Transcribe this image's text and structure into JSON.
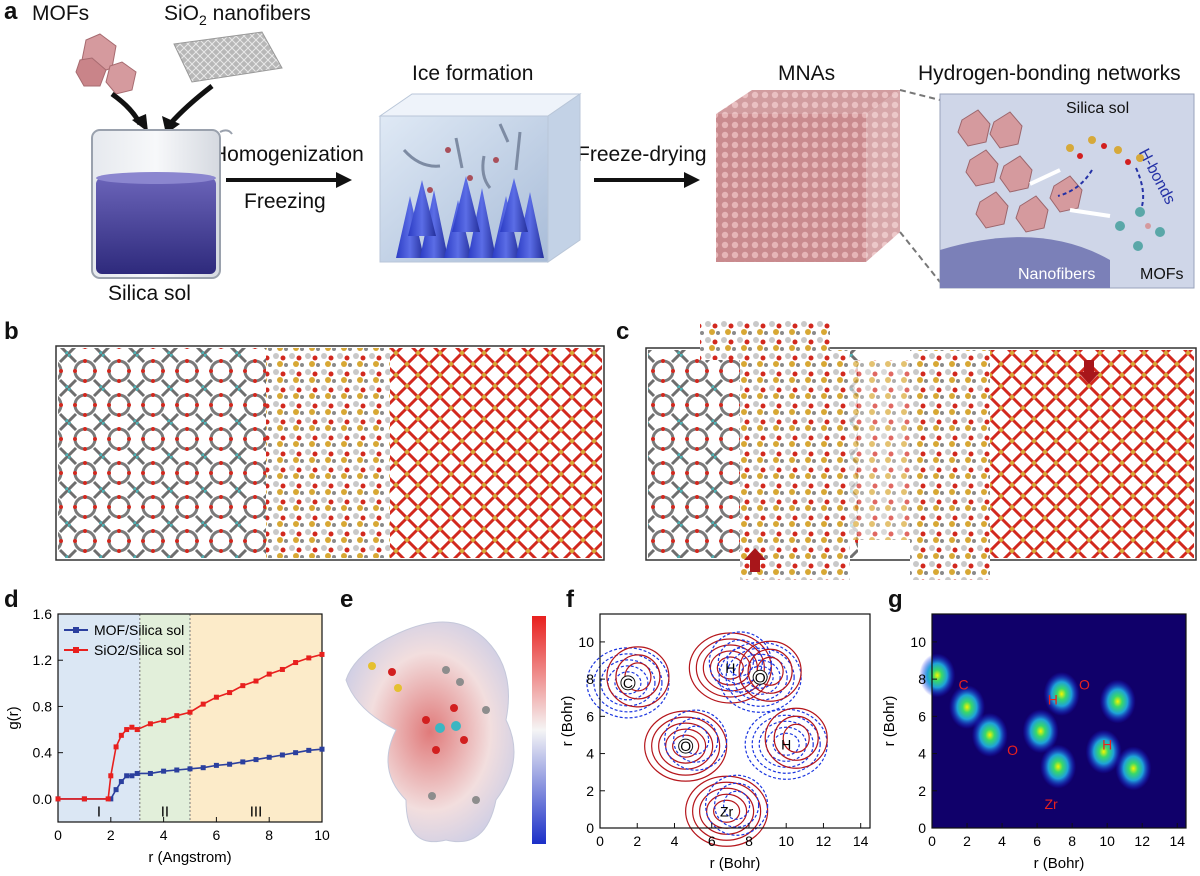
{
  "panels": {
    "a": "a",
    "b": "b",
    "c": "c",
    "d": "d",
    "e": "e",
    "f": "f",
    "g": "g"
  },
  "panel_a": {
    "mofs": "MOFs",
    "sio2_nanofibers_pre": "SiO",
    "sio2_sub": "2",
    "sio2_nanofibers_post": " nanofibers",
    "silica_sol": "Silica sol",
    "homogenization": "Homogenization",
    "freezing": "Freezing",
    "ice_formation": "Ice formation",
    "freeze_drying": "Freeze-drying",
    "mnas": "MNAs",
    "hbond_networks": "Hydrogen-bonding networks",
    "inset_silica_sol": "Silica sol",
    "inset_hbonds": "H-bonds",
    "inset_nanofibers": "Nanofibers",
    "inset_mofs": "MOFs"
  },
  "chart_data": [
    {
      "type": "line",
      "panel": "d",
      "xlabel": "r (Angstrom)",
      "ylabel": "g(r)",
      "xlim": [
        0,
        10
      ],
      "ylim": [
        -0.2,
        1.6
      ],
      "xticks": [
        "0",
        "2",
        "4",
        "6",
        "8",
        "10"
      ],
      "yticks": [
        "0.0",
        "0.4",
        "0.8",
        "1.2",
        "1.6"
      ],
      "regions": [
        {
          "label": "I",
          "from": 0,
          "to": 3.1,
          "color": "#dbe7f4"
        },
        {
          "label": "II",
          "from": 3.1,
          "to": 5.0,
          "color": "#e2efda"
        },
        {
          "label": "III",
          "from": 5.0,
          "to": 10,
          "color": "#fcebc9"
        }
      ],
      "legend": "top-left",
      "series": [
        {
          "name": "MOF/Silica sol",
          "color": "#2b3f9e",
          "x": [
            0,
            1,
            2,
            2.2,
            2.4,
            2.6,
            2.8,
            3.0,
            3.5,
            4.0,
            4.5,
            5.0,
            5.5,
            6.0,
            6.5,
            7.0,
            7.5,
            8.0,
            8.5,
            9.0,
            9.5,
            10.0
          ],
          "y": [
            0.0,
            0.0,
            0.0,
            0.08,
            0.15,
            0.2,
            0.2,
            0.22,
            0.22,
            0.24,
            0.25,
            0.26,
            0.27,
            0.29,
            0.3,
            0.32,
            0.34,
            0.36,
            0.38,
            0.4,
            0.42,
            0.43
          ]
        },
        {
          "name": "SiO2/Silica sol",
          "color": "#e8201e",
          "x": [
            0,
            1,
            1.9,
            2.0,
            2.2,
            2.4,
            2.6,
            2.8,
            3.0,
            3.5,
            4.0,
            4.5,
            5.0,
            5.5,
            6.0,
            6.5,
            7.0,
            7.5,
            8.0,
            8.5,
            9.0,
            9.5,
            10.0
          ],
          "y": [
            0.0,
            0.0,
            0.0,
            0.2,
            0.45,
            0.55,
            0.6,
            0.62,
            0.6,
            0.65,
            0.68,
            0.72,
            0.75,
            0.82,
            0.88,
            0.92,
            0.98,
            1.02,
            1.08,
            1.12,
            1.18,
            1.22,
            1.25
          ]
        }
      ]
    },
    {
      "type": "contour",
      "panel": "f",
      "xlabel": "r (Bohr)",
      "ylabel": "r (Bohr)",
      "xlim": [
        0,
        14.5
      ],
      "ylim": [
        0,
        11.5
      ],
      "xticks": [
        "0",
        "2",
        "4",
        "6",
        "8",
        "10",
        "12",
        "14"
      ],
      "yticks": [
        "0",
        "2",
        "4",
        "6",
        "8",
        "10"
      ],
      "atoms": [
        {
          "label": "C",
          "x": 1.5,
          "y": 7.8
        },
        {
          "label": "H",
          "x": 7.0,
          "y": 8.6
        },
        {
          "label": "O",
          "x": 8.6,
          "y": 8.1
        },
        {
          "label": "O",
          "x": 4.6,
          "y": 4.4
        },
        {
          "label": "H",
          "x": 10.0,
          "y": 4.5
        },
        {
          "label": "Zr",
          "x": 6.8,
          "y": 0.9
        }
      ]
    },
    {
      "type": "heatmap",
      "panel": "g",
      "xlabel": "r (Bohr)",
      "ylabel": "r (Bohr)",
      "xlim": [
        0,
        14.5
      ],
      "ylim": [
        0,
        11.5
      ],
      "xticks": [
        "0",
        "2",
        "4",
        "6",
        "8",
        "10",
        "12",
        "14"
      ],
      "yticks": [
        "0",
        "2",
        "4",
        "6",
        "8",
        "10"
      ],
      "atoms": [
        {
          "label": "C",
          "x": 1.8,
          "y": 7.7
        },
        {
          "label": "H",
          "x": 6.9,
          "y": 6.9
        },
        {
          "label": "O",
          "x": 8.7,
          "y": 7.7
        },
        {
          "label": "O",
          "x": 4.6,
          "y": 4.2
        },
        {
          "label": "H",
          "x": 10.0,
          "y": 4.5
        },
        {
          "label": "Zr",
          "x": 6.8,
          "y": 1.3
        }
      ]
    }
  ],
  "colors": {
    "red": "#e8201e",
    "blue": "#2b3f9e",
    "contour_red": "#b5151b",
    "contour_blue": "#1b36e0",
    "arrow_red": "#a8161a",
    "mof_pink": "#d59a9e"
  }
}
